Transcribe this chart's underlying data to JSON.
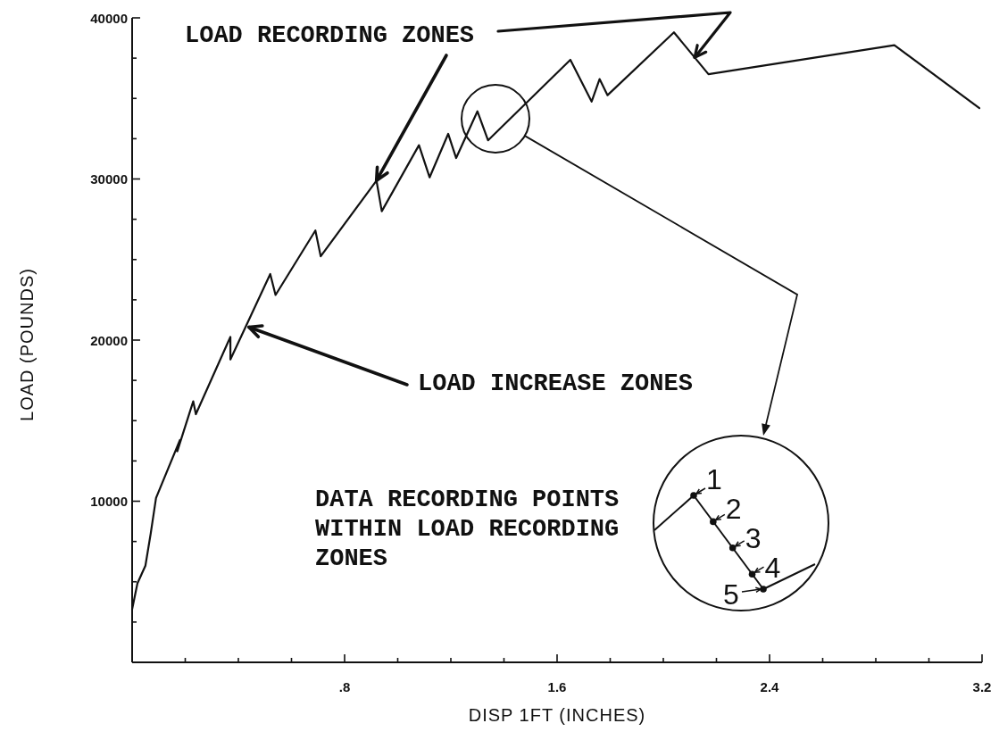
{
  "chart_data": {
    "type": "line",
    "xlabel": "DISP 1FT (INCHES)",
    "ylabel": "LOAD (POUNDS)",
    "x": [
      0,
      0.02,
      0.05,
      0.07,
      0.09,
      0.18,
      0.17,
      0.23,
      0.24,
      0.37,
      0.37,
      0.52,
      0.54,
      0.69,
      0.71,
      0.92,
      0.94,
      1.08,
      1.12,
      1.19,
      1.22,
      1.3,
      1.34,
      1.65,
      1.73,
      1.76,
      1.79,
      2.04,
      2.17,
      2.87,
      3.19
    ],
    "series": [
      {
        "color": "#111111",
        "values": [
          3300,
          4900,
          6000,
          8000,
          10200,
          13800,
          13100,
          16200,
          15400,
          20200,
          18800,
          24100,
          22800,
          26800,
          25200,
          29900,
          28000,
          32100,
          30100,
          32800,
          31300,
          34200,
          32400,
          37400,
          34800,
          36200,
          35200,
          39100,
          36500,
          38300,
          34400
        ]
      }
    ],
    "xlim": [
      0,
      3.2
    ],
    "ylim": [
      0,
      40000
    ],
    "xticks": [
      {
        "value": 0.2,
        "label": null
      },
      {
        "value": 0.4,
        "label": null
      },
      {
        "value": 0.6,
        "label": null
      },
      {
        "value": 0.8,
        "label": ".8"
      },
      {
        "value": 1.0,
        "label": null
      },
      {
        "value": 1.2,
        "label": null
      },
      {
        "value": 1.4,
        "label": null
      },
      1.6,
      {
        "value": 1.8,
        "label": null
      },
      {
        "value": 2.0,
        "label": null
      },
      {
        "value": 2.2,
        "label": null
      },
      2.4,
      {
        "value": 2.6,
        "label": null
      },
      {
        "value": 2.8,
        "label": null
      },
      {
        "value": 3.0,
        "label": null
      },
      3.2
    ],
    "yticks": [
      {
        "value": 2500,
        "label": null
      },
      {
        "value": 5000,
        "label": null
      },
      {
        "value": 7500,
        "label": null
      },
      10000,
      {
        "value": 12500,
        "label": null
      },
      {
        "value": 15000,
        "label": null
      },
      {
        "value": 17500,
        "label": null
      },
      20000,
      {
        "value": 22500,
        "label": null
      },
      {
        "value": 25000,
        "label": null
      },
      {
        "value": 27500,
        "label": null
      },
      30000,
      {
        "value": 32500,
        "label": null
      },
      {
        "value": 35000,
        "label": null
      },
      {
        "value": 37500,
        "label": null
      },
      40000
    ],
    "annotations": [
      {
        "text": "LOAD RECORDING ZONES",
        "x": 0.92,
        "y": 29900
      },
      {
        "text": "LOAD INCREASE ZONES",
        "x": 0.44,
        "y": 20800
      },
      "DATA RECORDING POINTS WITHIN LOAD RECORDING ZONES",
      "1",
      "2",
      "3",
      "4",
      "5"
    ]
  }
}
